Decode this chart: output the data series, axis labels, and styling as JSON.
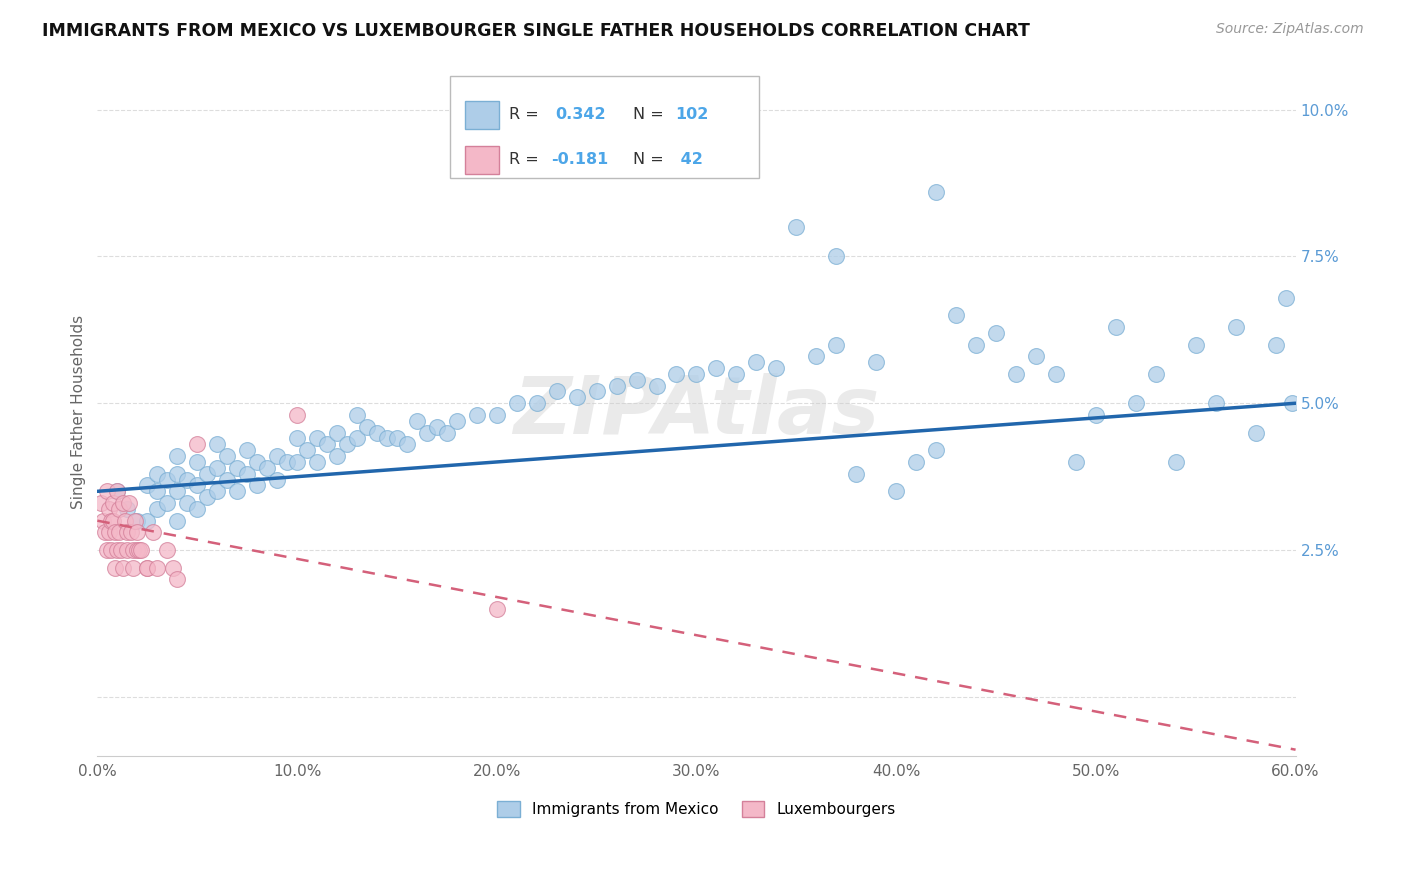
{
  "title": "IMMIGRANTS FROM MEXICO VS LUXEMBOURGER SINGLE FATHER HOUSEHOLDS CORRELATION CHART",
  "source": "Source: ZipAtlas.com",
  "xlabel_legend1": "Immigrants from Mexico",
  "xlabel_legend2": "Luxembourgers",
  "ylabel": "Single Father Households",
  "R1": 0.342,
  "N1": 102,
  "R2": -0.181,
  "N2": 42,
  "color1": "#aecde8",
  "color1_edge": "#7bafd4",
  "color2": "#f4b8c8",
  "color2_edge": "#d4809a",
  "trendline1_color": "#2166ac",
  "trendline2_color": "#d4607a",
  "watermark": "ZIPAtlas",
  "xlim": [
    0.0,
    0.6
  ],
  "ylim": [
    -0.01,
    0.107
  ],
  "xticks": [
    0.0,
    0.1,
    0.2,
    0.3,
    0.4,
    0.5,
    0.6
  ],
  "yticks_right": [
    0.0,
    0.025,
    0.05,
    0.075,
    0.1
  ],
  "ytick_labels_right": [
    "",
    "2.5%",
    "5.0%",
    "7.5%",
    "10.0%"
  ],
  "blue_intercept": 0.035,
  "blue_slope": 0.025,
  "pink_intercept": 0.03,
  "pink_slope": -0.065,
  "blue_scatter_x": [
    0.01,
    0.015,
    0.02,
    0.025,
    0.025,
    0.03,
    0.03,
    0.03,
    0.035,
    0.035,
    0.04,
    0.04,
    0.04,
    0.04,
    0.045,
    0.045,
    0.05,
    0.05,
    0.05,
    0.055,
    0.055,
    0.06,
    0.06,
    0.06,
    0.065,
    0.065,
    0.07,
    0.07,
    0.075,
    0.075,
    0.08,
    0.08,
    0.085,
    0.09,
    0.09,
    0.095,
    0.1,
    0.1,
    0.105,
    0.11,
    0.11,
    0.115,
    0.12,
    0.12,
    0.125,
    0.13,
    0.13,
    0.135,
    0.14,
    0.145,
    0.15,
    0.155,
    0.16,
    0.165,
    0.17,
    0.175,
    0.18,
    0.19,
    0.2,
    0.21,
    0.22,
    0.23,
    0.24,
    0.25,
    0.26,
    0.27,
    0.28,
    0.29,
    0.3,
    0.31,
    0.32,
    0.33,
    0.34,
    0.35,
    0.36,
    0.37,
    0.38,
    0.39,
    0.4,
    0.41,
    0.42,
    0.43,
    0.44,
    0.45,
    0.46,
    0.47,
    0.48,
    0.49,
    0.5,
    0.51,
    0.52,
    0.53,
    0.54,
    0.55,
    0.56,
    0.57,
    0.58,
    0.59,
    0.595,
    0.598,
    0.37,
    0.42
  ],
  "blue_scatter_y": [
    0.035,
    0.032,
    0.03,
    0.036,
    0.03,
    0.035,
    0.032,
    0.038,
    0.033,
    0.037,
    0.03,
    0.035,
    0.038,
    0.041,
    0.033,
    0.037,
    0.032,
    0.036,
    0.04,
    0.034,
    0.038,
    0.035,
    0.039,
    0.043,
    0.037,
    0.041,
    0.035,
    0.039,
    0.038,
    0.042,
    0.036,
    0.04,
    0.039,
    0.037,
    0.041,
    0.04,
    0.04,
    0.044,
    0.042,
    0.04,
    0.044,
    0.043,
    0.041,
    0.045,
    0.043,
    0.044,
    0.048,
    0.046,
    0.045,
    0.044,
    0.044,
    0.043,
    0.047,
    0.045,
    0.046,
    0.045,
    0.047,
    0.048,
    0.048,
    0.05,
    0.05,
    0.052,
    0.051,
    0.052,
    0.053,
    0.054,
    0.053,
    0.055,
    0.055,
    0.056,
    0.055,
    0.057,
    0.056,
    0.08,
    0.058,
    0.06,
    0.038,
    0.057,
    0.035,
    0.04,
    0.042,
    0.065,
    0.06,
    0.062,
    0.055,
    0.058,
    0.055,
    0.04,
    0.048,
    0.063,
    0.05,
    0.055,
    0.04,
    0.06,
    0.05,
    0.063,
    0.045,
    0.06,
    0.068,
    0.05,
    0.075,
    0.086
  ],
  "pink_scatter_x": [
    0.002,
    0.003,
    0.004,
    0.005,
    0.005,
    0.006,
    0.006,
    0.007,
    0.007,
    0.008,
    0.008,
    0.009,
    0.009,
    0.01,
    0.01,
    0.011,
    0.011,
    0.012,
    0.013,
    0.013,
    0.014,
    0.015,
    0.015,
    0.016,
    0.017,
    0.018,
    0.018,
    0.019,
    0.02,
    0.02,
    0.021,
    0.022,
    0.025,
    0.025,
    0.028,
    0.03,
    0.035,
    0.038,
    0.04,
    0.05,
    0.1,
    0.2
  ],
  "pink_scatter_y": [
    0.033,
    0.03,
    0.028,
    0.035,
    0.025,
    0.032,
    0.028,
    0.03,
    0.025,
    0.033,
    0.03,
    0.028,
    0.022,
    0.035,
    0.025,
    0.032,
    0.028,
    0.025,
    0.033,
    0.022,
    0.03,
    0.028,
    0.025,
    0.033,
    0.028,
    0.025,
    0.022,
    0.03,
    0.028,
    0.025,
    0.025,
    0.025,
    0.022,
    0.022,
    0.028,
    0.022,
    0.025,
    0.022,
    0.02,
    0.043,
    0.048,
    0.015
  ]
}
